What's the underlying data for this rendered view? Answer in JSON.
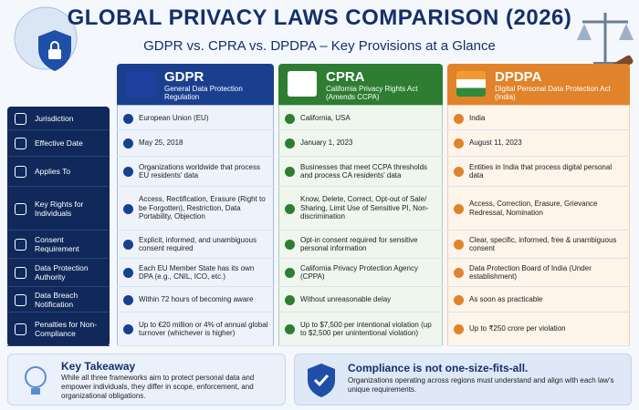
{
  "header": {
    "title": "GLOBAL PRIVACY LAWS COMPARISON (2026)",
    "subtitle": "GDPR vs. CPRA vs. DPDPA – Key Provisions at a Glance"
  },
  "columns": [
    {
      "name": "GDPR",
      "full_name": "General Data Protection Regulation"
    },
    {
      "name": "CPRA",
      "full_name": "California Privacy Rights Act (Amends CCPA)"
    },
    {
      "name": "DPDPA",
      "full_name": "Digital Personal Data Protection Act (India)"
    }
  ],
  "rows": [
    {
      "label": "Jurisdiction",
      "cells": [
        "European Union (EU)",
        "California, USA",
        "India"
      ]
    },
    {
      "label": "Effective Date",
      "cells": [
        "May 25, 2018",
        "January 1, 2023",
        "August 11, 2023"
      ]
    },
    {
      "label": "Applies To",
      "cells": [
        "Organizations worldwide that process EU residents' data",
        "Businesses that meet CCPA thresholds and process CA residents' data",
        "Entities in India that process digital personal data"
      ]
    },
    {
      "label": "Key Rights for Individuals",
      "cells": [
        "Access, Rectification, Erasure (Right to be Forgotten), Restriction, Data Portability, Objection",
        "Know, Delete, Correct, Opt-out of Sale/ Sharing, Limit Use of Sensitive PI, Non-discrimination",
        "Access, Correction, Erasure, Grievance Redressal, Nomination"
      ]
    },
    {
      "label": "Consent Requirement",
      "cells": [
        "Explicit, informed, and unambiguous consent required",
        "Opt-in consent required for sensitive personal information",
        "Clear, specific, informed, free & unambiguous consent"
      ]
    },
    {
      "label": "Data Protection Authority",
      "cells": [
        "Each EU Member State has its own DPA (e.g., CNIL, ICO, etc.)",
        "California Privacy Protection Agency (CPPA)",
        "Data Protection Board of India (Under establishment)"
      ]
    },
    {
      "label": "Data Breach Notification",
      "cells": [
        "Within 72 hours of becoming aware",
        "Without unreasonable delay",
        "As soon as practicable"
      ]
    },
    {
      "label": "Penalties for Non-Compliance",
      "cells": [
        "Up to €20 million or 4% of annual global turnover (whichever is higher)",
        "Up to $7,500 per intentional violation (up to $2,500 per unintentional violation)",
        "Up to ₹250 crore per violation"
      ]
    }
  ],
  "takeaway": {
    "title": "Key Takeaway",
    "text": "While all three frameworks aim to protect personal data and empower individuals, they differ in scope, enforcement, and organizational obligations."
  },
  "compliance": {
    "title": "Compliance is not one-size-fits-all.",
    "text": "Organizations operating across regions must understand and align with each law's unique requirements."
  }
}
